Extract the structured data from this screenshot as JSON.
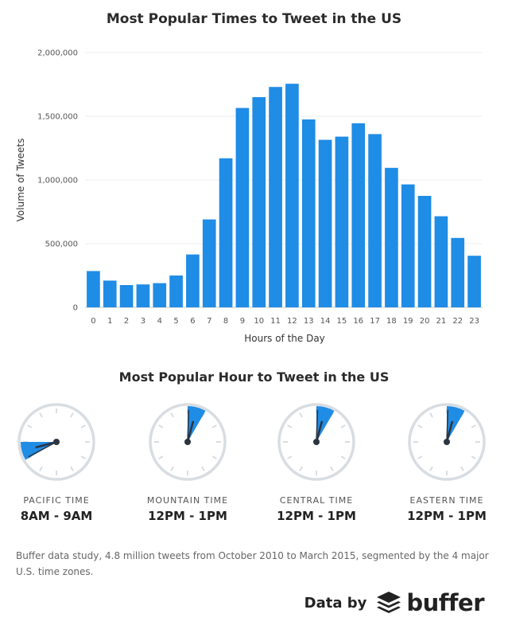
{
  "chart_data": {
    "type": "bar",
    "title": "Most Popular Times to Tweet in the US",
    "xlabel": "Hours of the Day",
    "ylabel": "Volume of Tweets",
    "categories": [
      "0",
      "1",
      "2",
      "3",
      "4",
      "5",
      "6",
      "7",
      "8",
      "9",
      "10",
      "11",
      "12",
      "13",
      "14",
      "15",
      "16",
      "17",
      "18",
      "19",
      "20",
      "21",
      "22",
      "23"
    ],
    "values": [
      285000,
      210000,
      175000,
      180000,
      190000,
      250000,
      415000,
      690000,
      1170000,
      1565000,
      1650000,
      1730000,
      1755000,
      1475000,
      1315000,
      1340000,
      1445000,
      1360000,
      1095000,
      965000,
      875000,
      715000,
      545000,
      405000
    ],
    "ylim": [
      0,
      2000000
    ],
    "yticks": [
      0,
      500000,
      1000000,
      1500000,
      2000000
    ],
    "ytick_labels": [
      "0",
      "500,000",
      "1,000,000",
      "1,500,000",
      "2,000,000"
    ],
    "grid": true,
    "bar_color": "#1f8ce6"
  },
  "clocks": {
    "title": "Most Popular Hour to Tweet in the US",
    "accent_color": "#1f8ce6",
    "items": [
      {
        "zone": "PACIFIC TIME",
        "hours": "8AM - 9AM",
        "start_hour": 8
      },
      {
        "zone": "MOUNTAIN TIME",
        "hours": "12PM - 1PM",
        "start_hour": 12
      },
      {
        "zone": "CENTRAL TIME",
        "hours": "12PM - 1PM",
        "start_hour": 12
      },
      {
        "zone": "EASTERN TIME",
        "hours": "12PM - 1PM",
        "start_hour": 12
      }
    ]
  },
  "footnote": "Buffer data study, 4.8 million tweets from October 2010 to March 2015, segmented by the 4 major U.S. time zones.",
  "brand": {
    "prefix": "Data by",
    "name": "buffer",
    "logo_icon": "buffer-stack-icon"
  }
}
